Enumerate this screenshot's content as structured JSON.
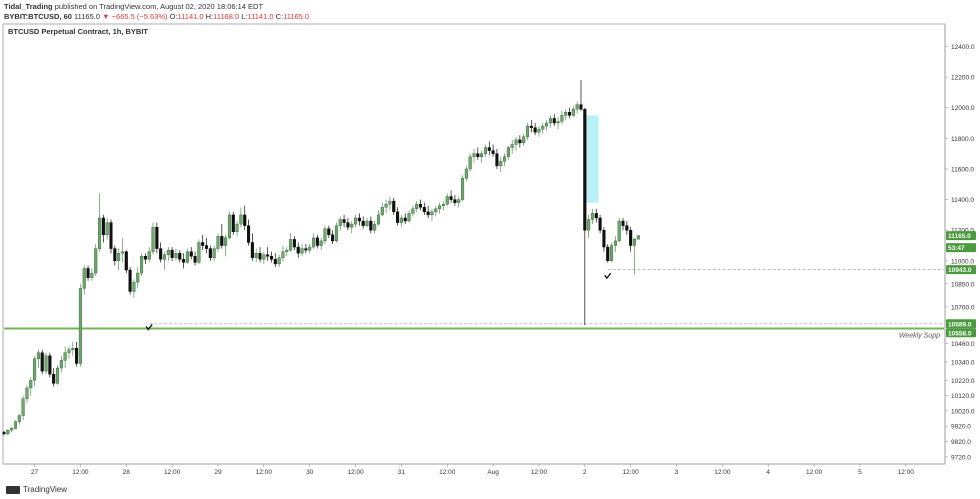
{
  "header": {
    "publisher": "Tidal_Trading",
    "published_text": "published on TradingView.com, August 02, 2020 18:06:14 EDT",
    "symbol": "BYBIT:BTCUSD, 60",
    "price": "11165.0",
    "change": "−665.5 (−5.63%)",
    "o_label": "O:",
    "o_value": "11141.0",
    "h_label": "H:",
    "h_value": "11168.0",
    "l_label": "L:",
    "l_value": "11141.0",
    "c_label": "C:",
    "c_value": "11165.0"
  },
  "footer": {
    "brand": "TradingView"
  },
  "colors": {
    "up": "#6fa86f",
    "down": "#111111",
    "support": "#6fb35c",
    "highlight": "#a8ecf2",
    "badge": "#4c9a3f"
  },
  "chart_data": {
    "type": "candlestick",
    "title": "BTCUSD Perpetual Contract, 1h, BYBIT",
    "ylim": [
      9680,
      12540
    ],
    "y_ticks": [
      9720,
      9820,
      9920,
      10020,
      10120,
      10220,
      10340,
      10460,
      10700,
      10850,
      11000,
      11200,
      11400,
      11600,
      11800,
      12000,
      12200,
      12400
    ],
    "y_tick_labels": [
      "9720.0",
      "9820.0",
      "9920.0",
      "10020.0",
      "10120.0",
      "10220.0",
      "10340.0",
      "10460.0",
      "10700.0",
      "10850.0",
      "11000.0",
      "11200.0",
      "11400.0",
      "11600.0",
      "11800.0",
      "12000.0",
      "12200.0",
      "12400.0"
    ],
    "x_ticks": [
      {
        "t": 0,
        "label": "27"
      },
      {
        "t": 12,
        "label": "12:00"
      },
      {
        "t": 24,
        "label": "28"
      },
      {
        "t": 36,
        "label": "12:00"
      },
      {
        "t": 48,
        "label": "29"
      },
      {
        "t": 60,
        "label": "12:00"
      },
      {
        "t": 72,
        "label": "30"
      },
      {
        "t": 84,
        "label": "12:00"
      },
      {
        "t": 96,
        "label": "31"
      },
      {
        "t": 108,
        "label": "12:00"
      },
      {
        "t": 120,
        "label": "Aug"
      },
      {
        "t": 132,
        "label": "12:00"
      },
      {
        "t": 144,
        "label": "2"
      },
      {
        "t": 156,
        "label": "12:00"
      },
      {
        "t": 168,
        "label": "3"
      },
      {
        "t": 180,
        "label": "12:00"
      },
      {
        "t": 192,
        "label": "4"
      },
      {
        "t": 204,
        "label": "12:00"
      },
      {
        "t": 216,
        "label": "5"
      },
      {
        "t": 228,
        "label": "12:00"
      }
    ],
    "x_range": [
      -8,
      238
    ],
    "support_level": 10558,
    "support_label": "Weekly Supp",
    "dashed_levels": [
      10589,
      10943
    ],
    "price_badges": [
      {
        "value": 11165,
        "label": "11165.0"
      },
      {
        "value": 11080,
        "label": "53:47"
      },
      {
        "value": 10943,
        "label": "10943.0"
      },
      {
        "value": 10589,
        "label": "10589.0"
      },
      {
        "value": 10558,
        "label": "10558.0"
      }
    ],
    "checkmarks": [
      {
        "t": 30,
        "price": 10565
      },
      {
        "t": 150,
        "price": 10900
      }
    ],
    "highlight": {
      "t0": 144.2,
      "t1": 147.6,
      "p_low": 11380,
      "p_high": 11950
    },
    "candles": [
      [
        -8,
        9880,
        9890,
        9862,
        9870
      ],
      [
        -7,
        9870,
        9900,
        9860,
        9895
      ],
      [
        -6,
        9895,
        9915,
        9880,
        9905
      ],
      [
        -5,
        9905,
        9960,
        9900,
        9950
      ],
      [
        -4,
        9950,
        10000,
        9930,
        9990
      ],
      [
        -3,
        9990,
        10120,
        9960,
        10100
      ],
      [
        -2,
        10100,
        10190,
        10070,
        10170
      ],
      [
        -1,
        10170,
        10240,
        10120,
        10220
      ],
      [
        0,
        10220,
        10380,
        10180,
        10360
      ],
      [
        1,
        10360,
        10420,
        10300,
        10400
      ],
      [
        2,
        10400,
        10420,
        10260,
        10280
      ],
      [
        3,
        10280,
        10400,
        10260,
        10380
      ],
      [
        4,
        10380,
        10400,
        10240,
        10260
      ],
      [
        5,
        10260,
        10300,
        10180,
        10200
      ],
      [
        6,
        10200,
        10320,
        10190,
        10300
      ],
      [
        7,
        10300,
        10380,
        10270,
        10350
      ],
      [
        8,
        10350,
        10440,
        10300,
        10400
      ],
      [
        9,
        10400,
        10440,
        10360,
        10420
      ],
      [
        10,
        10420,
        10470,
        10380,
        10430
      ],
      [
        11,
        10430,
        10470,
        10310,
        10330
      ],
      [
        12,
        10330,
        10850,
        10310,
        10820
      ],
      [
        13,
        10820,
        10970,
        10780,
        10950
      ],
      [
        14,
        10950,
        10970,
        10870,
        10890
      ],
      [
        15,
        10890,
        10950,
        10870,
        10920
      ],
      [
        16,
        10920,
        11110,
        10900,
        11080
      ],
      [
        17,
        11080,
        11440,
        11060,
        11280
      ],
      [
        18,
        11280,
        11300,
        11120,
        11170
      ],
      [
        19,
        11170,
        11280,
        11140,
        11250
      ],
      [
        20,
        11250,
        11270,
        11050,
        11080
      ],
      [
        21,
        11080,
        11100,
        10970,
        11000
      ],
      [
        22,
        11000,
        11080,
        10940,
        11050
      ],
      [
        23,
        11050,
        11150,
        10990,
        11060
      ],
      [
        24,
        11060,
        11070,
        10920,
        10940
      ],
      [
        25,
        10940,
        10960,
        10780,
        10800
      ],
      [
        26,
        10800,
        10880,
        10760,
        10860
      ],
      [
        27,
        10860,
        10960,
        10820,
        10920
      ],
      [
        28,
        10920,
        11050,
        10900,
        11030
      ],
      [
        29,
        11030,
        11050,
        10980,
        11010
      ],
      [
        30,
        11010,
        11090,
        10990,
        11060
      ],
      [
        31,
        11060,
        11250,
        11040,
        11220
      ],
      [
        32,
        11220,
        11250,
        11050,
        11080
      ],
      [
        33,
        11080,
        11120,
        10990,
        11010
      ],
      [
        34,
        11010,
        11060,
        10940,
        11040
      ],
      [
        35,
        11040,
        11090,
        11000,
        11070
      ],
      [
        36,
        11070,
        11090,
        11000,
        11020
      ],
      [
        37,
        11020,
        11080,
        11000,
        11050
      ],
      [
        38,
        11050,
        11070,
        10990,
        11010
      ],
      [
        39,
        11010,
        11050,
        10950,
        10990
      ],
      [
        40,
        10990,
        11080,
        10980,
        11060
      ],
      [
        41,
        11060,
        11090,
        11010,
        11030
      ],
      [
        42,
        11030,
        11060,
        10970,
        10990
      ],
      [
        43,
        10990,
        11140,
        10980,
        11120
      ],
      [
        44,
        11120,
        11170,
        11070,
        11100
      ],
      [
        45,
        11100,
        11150,
        11050,
        11080
      ],
      [
        46,
        11080,
        11100,
        11000,
        11020
      ],
      [
        47,
        11020,
        11100,
        11000,
        11080
      ],
      [
        48,
        11080,
        11180,
        11060,
        11160
      ],
      [
        49,
        11160,
        11240,
        11080,
        11100
      ],
      [
        50,
        11100,
        11170,
        11030,
        11150
      ],
      [
        51,
        11150,
        11320,
        11140,
        11300
      ],
      [
        52,
        11300,
        11320,
        11170,
        11190
      ],
      [
        53,
        11190,
        11260,
        11160,
        11240
      ],
      [
        54,
        11240,
        11350,
        11220,
        11300
      ],
      [
        55,
        11300,
        11360,
        11200,
        11230
      ],
      [
        56,
        11230,
        11270,
        11100,
        11120
      ],
      [
        57,
        11120,
        11180,
        11000,
        11020
      ],
      [
        58,
        11020,
        11080,
        10990,
        11050
      ],
      [
        59,
        11050,
        11090,
        10990,
        11010
      ],
      [
        60,
        11010,
        11060,
        10980,
        11040
      ],
      [
        61,
        11040,
        11090,
        11000,
        11030
      ],
      [
        62,
        11030,
        11060,
        10990,
        11010
      ],
      [
        63,
        11010,
        11050,
        10960,
        10980
      ],
      [
        64,
        10980,
        11040,
        10960,
        11020
      ],
      [
        65,
        11020,
        11100,
        11000,
        11060
      ],
      [
        66,
        11060,
        11090,
        11030,
        11070
      ],
      [
        67,
        11070,
        11180,
        11060,
        11140
      ],
      [
        68,
        11140,
        11160,
        11070,
        11090
      ],
      [
        69,
        11090,
        11120,
        11020,
        11050
      ],
      [
        70,
        11050,
        11110,
        11030,
        11080
      ],
      [
        71,
        11080,
        11110,
        11050,
        11070
      ],
      [
        72,
        11070,
        11110,
        11050,
        11090
      ],
      [
        73,
        11090,
        11180,
        11080,
        11150
      ],
      [
        74,
        11150,
        11170,
        11080,
        11100
      ],
      [
        75,
        11100,
        11150,
        11070,
        11130
      ],
      [
        76,
        11130,
        11230,
        11110,
        11210
      ],
      [
        77,
        11210,
        11230,
        11150,
        11170
      ],
      [
        78,
        11170,
        11200,
        11110,
        11130
      ],
      [
        79,
        11130,
        11250,
        11120,
        11230
      ],
      [
        80,
        11230,
        11290,
        11200,
        11270
      ],
      [
        81,
        11270,
        11300,
        11220,
        11250
      ],
      [
        82,
        11250,
        11280,
        11200,
        11220
      ],
      [
        83,
        11220,
        11260,
        11180,
        11240
      ],
      [
        84,
        11240,
        11300,
        11220,
        11280
      ],
      [
        85,
        11280,
        11310,
        11230,
        11260
      ],
      [
        86,
        11260,
        11290,
        11210,
        11230
      ],
      [
        87,
        11230,
        11280,
        11220,
        11260
      ],
      [
        88,
        11260,
        11290,
        11180,
        11200
      ],
      [
        89,
        11200,
        11260,
        11180,
        11240
      ],
      [
        90,
        11240,
        11330,
        11230,
        11300
      ],
      [
        91,
        11300,
        11380,
        11290,
        11350
      ],
      [
        92,
        11350,
        11400,
        11310,
        11370
      ],
      [
        93,
        11370,
        11420,
        11330,
        11390
      ],
      [
        94,
        11390,
        11410,
        11300,
        11320
      ],
      [
        95,
        11320,
        11350,
        11230,
        11250
      ],
      [
        96,
        11250,
        11300,
        11220,
        11280
      ],
      [
        97,
        11280,
        11310,
        11240,
        11260
      ],
      [
        98,
        11260,
        11330,
        11250,
        11310
      ],
      [
        99,
        11310,
        11360,
        11290,
        11340
      ],
      [
        100,
        11340,
        11390,
        11320,
        11370
      ],
      [
        101,
        11370,
        11400,
        11330,
        11350
      ],
      [
        102,
        11350,
        11380,
        11300,
        11320
      ],
      [
        103,
        11320,
        11360,
        11280,
        11300
      ],
      [
        104,
        11300,
        11340,
        11260,
        11320
      ],
      [
        105,
        11320,
        11360,
        11290,
        11340
      ],
      [
        106,
        11340,
        11380,
        11310,
        11360
      ],
      [
        107,
        11360,
        11390,
        11330,
        11370
      ],
      [
        108,
        11370,
        11440,
        11360,
        11420
      ],
      [
        109,
        11420,
        11460,
        11380,
        11400
      ],
      [
        110,
        11400,
        11430,
        11360,
        11380
      ],
      [
        111,
        11380,
        11420,
        11350,
        11400
      ],
      [
        112,
        11400,
        11560,
        11390,
        11540
      ],
      [
        113,
        11540,
        11620,
        11520,
        11600
      ],
      [
        114,
        11600,
        11700,
        11580,
        11680
      ],
      [
        115,
        11680,
        11730,
        11640,
        11700
      ],
      [
        116,
        11700,
        11740,
        11660,
        11680
      ],
      [
        117,
        11680,
        11720,
        11640,
        11700
      ],
      [
        118,
        11700,
        11760,
        11680,
        11740
      ],
      [
        119,
        11740,
        11780,
        11690,
        11720
      ],
      [
        120,
        11720,
        11760,
        11680,
        11700
      ],
      [
        121,
        11700,
        11730,
        11600,
        11620
      ],
      [
        122,
        11620,
        11680,
        11580,
        11650
      ],
      [
        123,
        11650,
        11700,
        11620,
        11680
      ],
      [
        124,
        11680,
        11750,
        11660,
        11740
      ],
      [
        125,
        11740,
        11790,
        11700,
        11760
      ],
      [
        126,
        11760,
        11810,
        11720,
        11790
      ],
      [
        127,
        11790,
        11820,
        11740,
        11770
      ],
      [
        128,
        11770,
        11830,
        11750,
        11810
      ],
      [
        129,
        11810,
        11900,
        11790,
        11880
      ],
      [
        130,
        11880,
        11920,
        11840,
        11870
      ],
      [
        131,
        11870,
        11900,
        11820,
        11840
      ],
      [
        132,
        11840,
        11880,
        11810,
        11860
      ],
      [
        133,
        11860,
        11900,
        11830,
        11880
      ],
      [
        134,
        11880,
        11920,
        11850,
        11900
      ],
      [
        135,
        11900,
        11950,
        11870,
        11930
      ],
      [
        136,
        11930,
        11960,
        11880,
        11900
      ],
      [
        137,
        11900,
        11940,
        11860,
        11910
      ],
      [
        138,
        11910,
        11980,
        11890,
        11950
      ],
      [
        139,
        11950,
        11990,
        11920,
        11970
      ],
      [
        140,
        11970,
        12000,
        11930,
        11950
      ],
      [
        141,
        11950,
        12010,
        11940,
        11990
      ],
      [
        142,
        11990,
        12040,
        11960,
        12020
      ],
      [
        143,
        12020,
        12180,
        11980,
        11990
      ],
      [
        144,
        11990,
        12000,
        10580,
        11200
      ],
      [
        145,
        11200,
        11300,
        11150,
        11270
      ],
      [
        146,
        11270,
        11340,
        11240,
        11310
      ],
      [
        147,
        11310,
        11340,
        11250,
        11280
      ],
      [
        148,
        11280,
        11300,
        11180,
        11200
      ],
      [
        149,
        11200,
        11220,
        11060,
        11090
      ],
      [
        150,
        11090,
        11110,
        10990,
        11000
      ],
      [
        151,
        11000,
        11120,
        10990,
        11100
      ],
      [
        152,
        11100,
        11160,
        11060,
        11130
      ],
      [
        153,
        11130,
        11280,
        11120,
        11260
      ],
      [
        154,
        11260,
        11280,
        11200,
        11230
      ],
      [
        155,
        11230,
        11260,
        11170,
        11200
      ],
      [
        156,
        11200,
        11220,
        11060,
        11100
      ],
      [
        157,
        11100,
        11150,
        10910,
        11141
      ],
      [
        158,
        11141,
        11168,
        11141,
        11165
      ]
    ]
  }
}
